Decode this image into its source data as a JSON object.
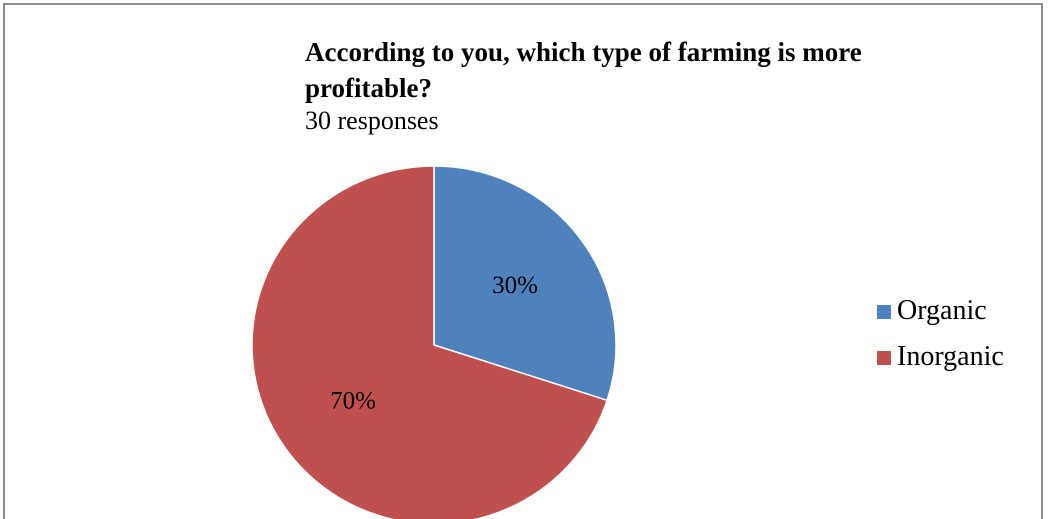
{
  "chart_data": {
    "type": "pie",
    "title": "According to you, which type of farming is more profitable?",
    "subtitle": "30 responses",
    "categories": [
      "Organic",
      "Inorganic"
    ],
    "values": [
      30,
      70
    ],
    "labels": [
      "30%",
      "70%"
    ],
    "colors": [
      "#4F81BD",
      "#C0504D"
    ],
    "legend_position": "right"
  }
}
